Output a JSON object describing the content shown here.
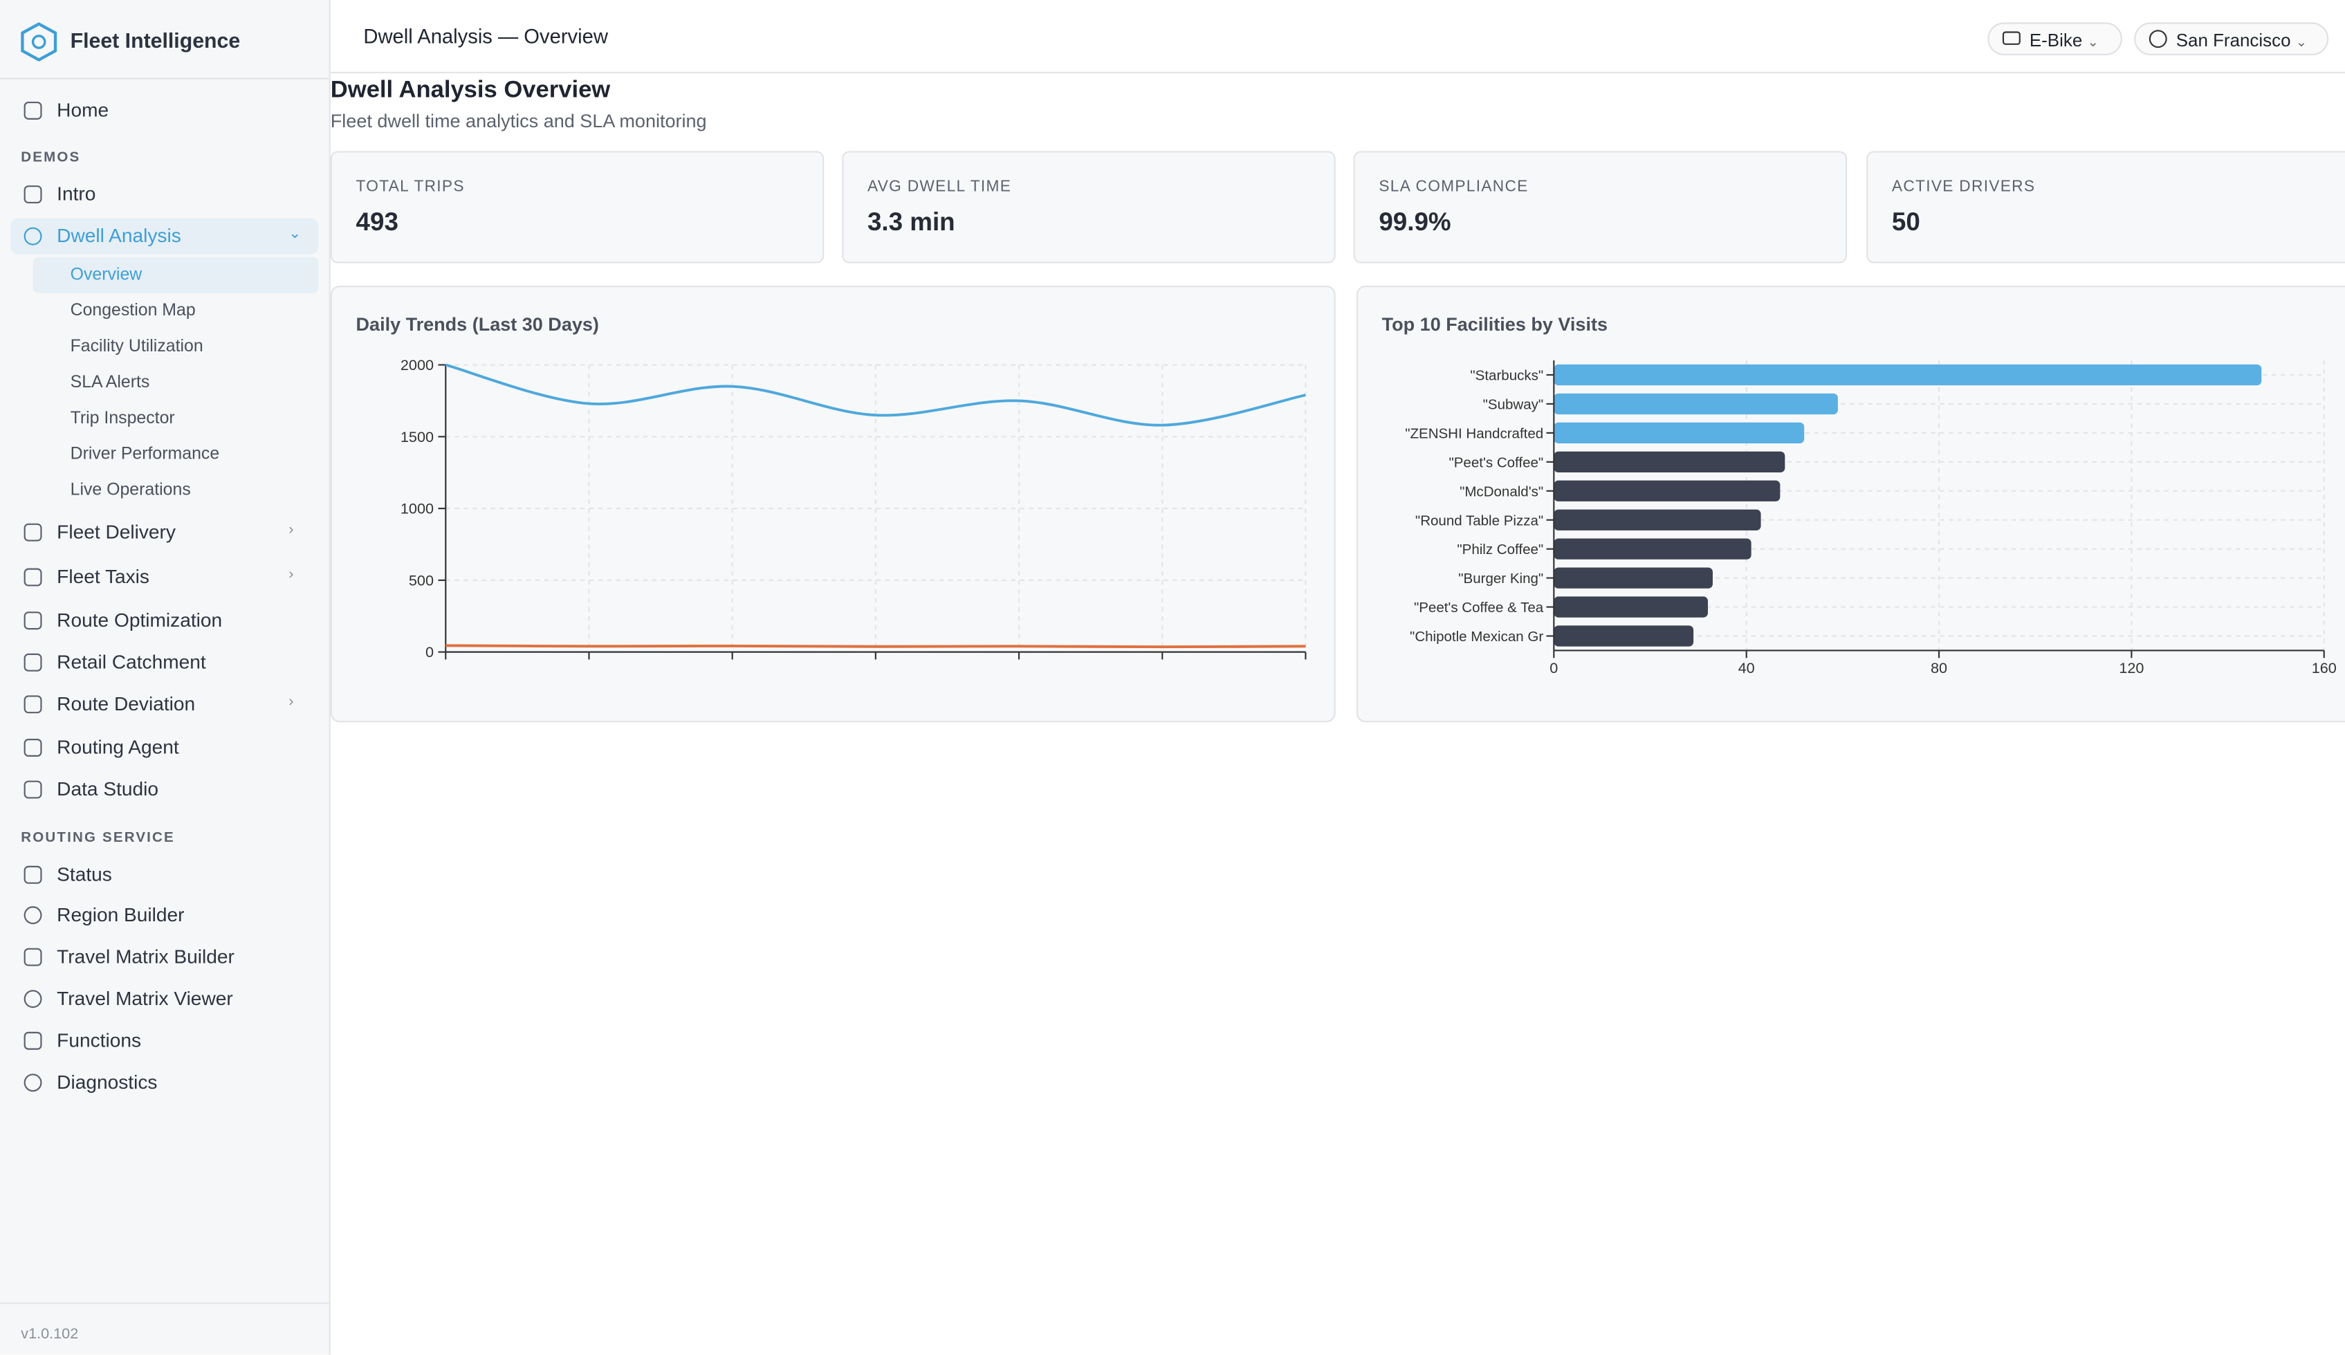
{
  "sidebar": {
    "brand": "Fleet Intelligence",
    "home": "Home",
    "demos": {
      "heading": "DEMOS",
      "intro": "Intro",
      "dwell": "Dwell Analysis",
      "dwell_items": [
        "Overview",
        "Congestion Map",
        "Facility Utilization",
        "SLA Alerts",
        "Trip Inspector",
        "Driver Performance",
        "Live Operations"
      ],
      "items": [
        "Fleet Delivery",
        "Fleet Taxis",
        "Route Optimization",
        "Retail Catchment",
        "Route Deviation",
        "Routing Agent",
        "Data Studio"
      ]
    },
    "routing": {
      "heading": "ROUTING SERVICE",
      "items": [
        "Status",
        "Region Builder",
        "Travel Matrix Builder",
        "Travel Matrix Viewer",
        "Functions",
        "Diagnostics"
      ]
    },
    "version": "v1.0.102"
  },
  "header": {
    "breadcrumb": "Dwell Analysis — Overview",
    "vehicle": "E-Bike",
    "city": "San Francisco"
  },
  "page": {
    "title": "Dwell Analysis Overview",
    "subtitle": "Fleet dwell time analytics and SLA monitoring"
  },
  "kpis": [
    {
      "label": "TOTAL TRIPS",
      "value": "493"
    },
    {
      "label": "AVG DWELL TIME",
      "value": "3.3 min"
    },
    {
      "label": "SLA COMPLIANCE",
      "value": "99.9%"
    },
    {
      "label": "ACTIVE DRIVERS",
      "value": "50"
    }
  ],
  "chart_data": [
    {
      "type": "line",
      "title": "Daily Trends (Last 30 Days)",
      "categories": [
        null,
        null,
        null,
        null,
        null,
        null,
        null
      ],
      "series": [
        {
          "color": "#4ea8dc",
          "values": [
            2000,
            1730,
            1850,
            1650,
            1750,
            1580,
            1790
          ]
        },
        {
          "color": "#e0703f",
          "values": [
            45,
            40,
            42,
            38,
            40,
            36,
            40
          ]
        }
      ],
      "ylim": [
        0,
        2000
      ],
      "yticks": [
        0,
        500,
        1000,
        1500,
        2000
      ],
      "grid": true
    },
    {
      "type": "hbar",
      "title": "Top 10 Facilities by Visits",
      "categories": [
        "\"Starbucks\"",
        "\"Subway\"",
        "\"ZENSHI Handcrafted",
        "\"Peet's Coffee\"",
        "\"McDonald's\"",
        "\"Round Table Pizza\"",
        "\"Philz Coffee\"",
        "\"Burger King\"",
        "\"Peet's Coffee & Tea",
        "\"Chipotle Mexican Gr"
      ],
      "values": [
        147,
        59,
        52,
        48,
        47,
        43,
        41,
        33,
        32,
        29
      ],
      "colors": [
        "#5aafe3",
        "#5aafe3",
        "#5aafe3",
        "#3d4252",
        "#3d4252",
        "#3d4252",
        "#3d4252",
        "#3d4252",
        "#3d4252",
        "#3d4252"
      ],
      "xlim": [
        0,
        160
      ],
      "xticks": [
        0,
        40,
        80,
        120,
        160
      ],
      "grid": true
    }
  ]
}
